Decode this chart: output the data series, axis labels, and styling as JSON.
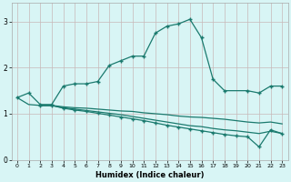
{
  "xlabel": "Humidex (Indice chaleur)",
  "bg_color": "#d8f5f5",
  "line_color": "#1a7a6e",
  "grid_color": "#c8b8b8",
  "xmin": -0.5,
  "xmax": 23.5,
  "ymin": 0,
  "ymax": 3.4,
  "yticks": [
    0,
    1,
    2,
    3
  ],
  "xticks": [
    0,
    1,
    2,
    3,
    4,
    5,
    6,
    7,
    8,
    9,
    10,
    11,
    12,
    13,
    14,
    15,
    16,
    17,
    18,
    19,
    20,
    21,
    22,
    23
  ],
  "curve1_x": [
    0,
    1,
    2,
    3,
    4,
    5,
    6,
    7,
    8,
    9,
    10,
    11,
    12,
    13,
    14,
    15,
    16,
    17,
    18,
    20,
    21,
    22,
    23
  ],
  "curve1_y": [
    1.35,
    1.45,
    1.2,
    1.2,
    1.6,
    1.65,
    1.65,
    1.7,
    2.05,
    2.15,
    2.25,
    2.25,
    2.75,
    2.9,
    2.95,
    3.05,
    2.65,
    1.75,
    1.5,
    1.5,
    1.45,
    1.6,
    1.6
  ],
  "curve2_x": [
    0,
    1,
    2,
    3,
    4,
    5,
    6,
    7,
    8,
    9,
    10,
    11,
    12,
    13,
    14,
    15,
    16,
    17,
    18,
    19,
    20,
    21,
    22,
    23
  ],
  "curve2_y": [
    1.35,
    1.2,
    1.18,
    1.18,
    1.15,
    1.13,
    1.12,
    1.1,
    1.08,
    1.06,
    1.05,
    1.02,
    1.0,
    0.98,
    0.95,
    0.93,
    0.92,
    0.9,
    0.88,
    0.85,
    0.82,
    0.8,
    0.82,
    0.78
  ],
  "curve3_x": [
    2,
    3,
    4,
    5,
    6,
    7,
    8,
    9,
    10,
    11,
    12,
    13,
    14,
    15,
    16,
    17,
    18,
    19,
    20,
    21,
    22,
    23
  ],
  "curve3_y": [
    1.18,
    1.18,
    1.13,
    1.1,
    1.07,
    1.04,
    1.01,
    0.98,
    0.94,
    0.9,
    0.86,
    0.82,
    0.78,
    0.74,
    0.72,
    0.68,
    0.65,
    0.63,
    0.6,
    0.57,
    0.62,
    0.57
  ],
  "curve4_x": [
    2,
    3,
    4,
    5,
    6,
    7,
    8,
    9,
    10,
    11,
    12,
    13,
    14,
    15,
    16,
    17,
    18,
    19,
    20,
    21,
    22,
    23
  ],
  "curve4_y": [
    1.18,
    1.18,
    1.12,
    1.08,
    1.05,
    1.01,
    0.97,
    0.93,
    0.89,
    0.85,
    0.8,
    0.75,
    0.71,
    0.67,
    0.63,
    0.59,
    0.55,
    0.52,
    0.5,
    0.28,
    0.65,
    0.57
  ]
}
